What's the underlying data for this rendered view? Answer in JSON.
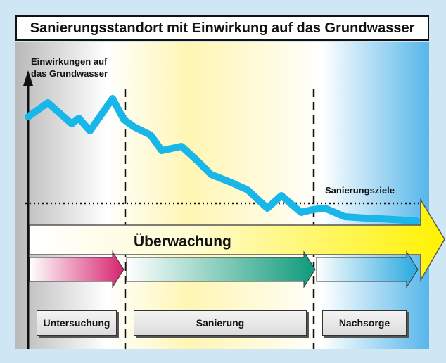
{
  "title": "Sanierungsstandort mit Einwirkung auf das Grundwasser",
  "axis": {
    "y_label_line1": "Einwirkungen auf",
    "y_label_line2": "das Grundwasser"
  },
  "target_line_label": "Sanierungsziele",
  "monitoring_arrow_label": "Überwachung",
  "phases": [
    {
      "name": "Untersuchung",
      "arrow_color": "#d6246e"
    },
    {
      "name": "Sanierung",
      "arrow_color": "#0f9a7a"
    },
    {
      "name": "Nachsorge",
      "arrow_color": "#29a8e0"
    }
  ],
  "colors": {
    "curve": "#19b6ea",
    "monitoring_arrow": "#fff200",
    "background_left": "#b9b9b9",
    "background_middle": "#fff7b0",
    "background_right": "#5ab8ea"
  }
}
